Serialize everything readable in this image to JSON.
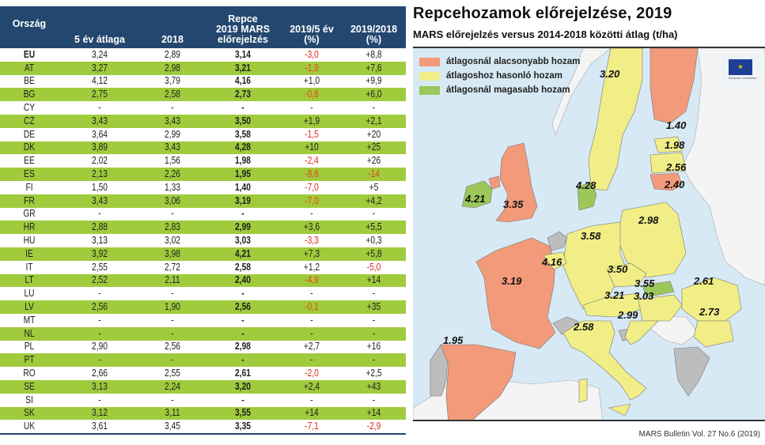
{
  "table": {
    "headers": {
      "country": "Ország",
      "avg5": "5 év átlaga",
      "y2018": "2018",
      "forecast_line1": "Repce",
      "forecast_line2": "2019 MARS",
      "forecast_line3": "előrejelzés",
      "pct5_line1": "2019/5 év",
      "pct5_line2": "(%)",
      "pct18_line1": "2019/2018",
      "pct18_line2": "(%)"
    },
    "rows": [
      {
        "country": "EU",
        "avg5": "3,24",
        "y2018": "2,89",
        "forecast": "3,14",
        "pct5": "-3,0",
        "pct18": "+8,8"
      },
      {
        "country": "AT",
        "avg5": "3,27",
        "y2018": "2,98",
        "forecast": "3,21",
        "pct5": "-1,9",
        "pct18": "+7,6"
      },
      {
        "country": "BE",
        "avg5": "4,12",
        "y2018": "3,79",
        "forecast": "4,16",
        "pct5": "+1,0",
        "pct18": "+9,9"
      },
      {
        "country": "BG",
        "avg5": "2,75",
        "y2018": "2,58",
        "forecast": "2,73",
        "pct5": "-0,8",
        "pct18": "+6,0"
      },
      {
        "country": "CY",
        "avg5": "-",
        "y2018": "-",
        "forecast": "-",
        "pct5": "-",
        "pct18": "-"
      },
      {
        "country": "CZ",
        "avg5": "3,43",
        "y2018": "3,43",
        "forecast": "3,50",
        "pct5": "+1,9",
        "pct18": "+2,1"
      },
      {
        "country": "DE",
        "avg5": "3,64",
        "y2018": "2,99",
        "forecast": "3,58",
        "pct5": "-1,5",
        "pct18": "+20"
      },
      {
        "country": "DK",
        "avg5": "3,89",
        "y2018": "3,43",
        "forecast": "4,28",
        "pct5": "+10",
        "pct18": "+25"
      },
      {
        "country": "EE",
        "avg5": "2,02",
        "y2018": "1,56",
        "forecast": "1,98",
        "pct5": "-2,4",
        "pct18": "+26"
      },
      {
        "country": "ES",
        "avg5": "2,13",
        "y2018": "2,26",
        "forecast": "1,95",
        "pct5": "-8,8",
        "pct18": "-14"
      },
      {
        "country": "FI",
        "avg5": "1,50",
        "y2018": "1,33",
        "forecast": "1,40",
        "pct5": "-7,0",
        "pct18": "+5"
      },
      {
        "country": "FR",
        "avg5": "3,43",
        "y2018": "3,06",
        "forecast": "3,19",
        "pct5": "-7,0",
        "pct18": "+4,2"
      },
      {
        "country": "GR",
        "avg5": "-",
        "y2018": "-",
        "forecast": "-",
        "pct5": "-",
        "pct18": "-"
      },
      {
        "country": "HR",
        "avg5": "2,88",
        "y2018": "2,83",
        "forecast": "2,99",
        "pct5": "+3,6",
        "pct18": "+5,5"
      },
      {
        "country": "HU",
        "avg5": "3,13",
        "y2018": "3,02",
        "forecast": "3,03",
        "pct5": "-3,3",
        "pct18": "+0,3"
      },
      {
        "country": "IE",
        "avg5": "3,92",
        "y2018": "3,98",
        "forecast": "4,21",
        "pct5": "+7,3",
        "pct18": "+5,8"
      },
      {
        "country": "IT",
        "avg5": "2,55",
        "y2018": "2,72",
        "forecast": "2,58",
        "pct5": "+1,2",
        "pct18": "-5,0"
      },
      {
        "country": "LT",
        "avg5": "2,52",
        "y2018": "2,11",
        "forecast": "2,40",
        "pct5": "-4,9",
        "pct18": "+14"
      },
      {
        "country": "LU",
        "avg5": "-",
        "y2018": "-",
        "forecast": "-",
        "pct5": "-",
        "pct18": "-"
      },
      {
        "country": "LV",
        "avg5": "2,56",
        "y2018": "1,90",
        "forecast": "2,56",
        "pct5": "-0,1",
        "pct18": "+35"
      },
      {
        "country": "MT",
        "avg5": "-",
        "y2018": "-",
        "forecast": "-",
        "pct5": "-",
        "pct18": "-"
      },
      {
        "country": "NL",
        "avg5": "-",
        "y2018": "-",
        "forecast": "-",
        "pct5": "-",
        "pct18": "-"
      },
      {
        "country": "PL",
        "avg5": "2,90",
        "y2018": "2,56",
        "forecast": "2,98",
        "pct5": "+2,7",
        "pct18": "+16"
      },
      {
        "country": "PT",
        "avg5": "-",
        "y2018": "-",
        "forecast": "-",
        "pct5": "-",
        "pct18": "-"
      },
      {
        "country": "RO",
        "avg5": "2,66",
        "y2018": "2,55",
        "forecast": "2,61",
        "pct5": "-2,0",
        "pct18": "+2,5"
      },
      {
        "country": "SE",
        "avg5": "3,13",
        "y2018": "2,24",
        "forecast": "3,20",
        "pct5": "+2,4",
        "pct18": "+43"
      },
      {
        "country": "SI",
        "avg5": "-",
        "y2018": "-",
        "forecast": "-",
        "pct5": "-",
        "pct18": "-"
      },
      {
        "country": "SK",
        "avg5": "3,12",
        "y2018": "3,11",
        "forecast": "3,55",
        "pct5": "+14",
        "pct18": "+14"
      },
      {
        "country": "UK",
        "avg5": "3,61",
        "y2018": "3,45",
        "forecast": "3,35",
        "pct5": "-7,1",
        "pct18": "-2,9"
      }
    ],
    "colors": {
      "header": "#24476f",
      "alt_row": "#9fcb3c",
      "negative": "#e02a1c"
    }
  },
  "map": {
    "title": "Repcehozamok előrejelzése, 2019",
    "subtitle": "MARS előrejelzés versus 2014-2018 közötti átlag (t/ha)",
    "legend": [
      {
        "label": "átlagosnál alacsonyabb hozam",
        "color": "#f29a7a"
      },
      {
        "label": "átlagoshoz hasonló hozam",
        "color": "#f1ee87"
      },
      {
        "label": "átlagosnál magasabb hozam",
        "color": "#9cc75a"
      }
    ],
    "logo": {
      "flag_icon": "eu-flag-icon",
      "text": "European Commission"
    },
    "labels": [
      {
        "country": "SE",
        "value": "3.20"
      },
      {
        "country": "FI",
        "value": "1.40"
      },
      {
        "country": "EE",
        "value": "1.98"
      },
      {
        "country": "LV",
        "value": "2.56"
      },
      {
        "country": "LT",
        "value": "2.40"
      },
      {
        "country": "DK",
        "value": "4.28"
      },
      {
        "country": "IE",
        "value": "4.21"
      },
      {
        "country": "UK",
        "value": "3.35"
      },
      {
        "country": "PL",
        "value": "2.98"
      },
      {
        "country": "BE",
        "value": "4.16"
      },
      {
        "country": "DE",
        "value": "3.58"
      },
      {
        "country": "CZ",
        "value": "3.50"
      },
      {
        "country": "SK",
        "value": "3.55"
      },
      {
        "country": "AT",
        "value": "3.21"
      },
      {
        "country": "HU",
        "value": "3.03"
      },
      {
        "country": "FR",
        "value": "3.19"
      },
      {
        "country": "RO",
        "value": "2.61"
      },
      {
        "country": "HR",
        "value": "2.99"
      },
      {
        "country": "BG",
        "value": "2.73"
      },
      {
        "country": "IT",
        "value": "2.58"
      },
      {
        "country": "ES",
        "value": "1.95"
      }
    ],
    "source": "MARS Bulletin Vol. 27 No.6 (2019)"
  }
}
